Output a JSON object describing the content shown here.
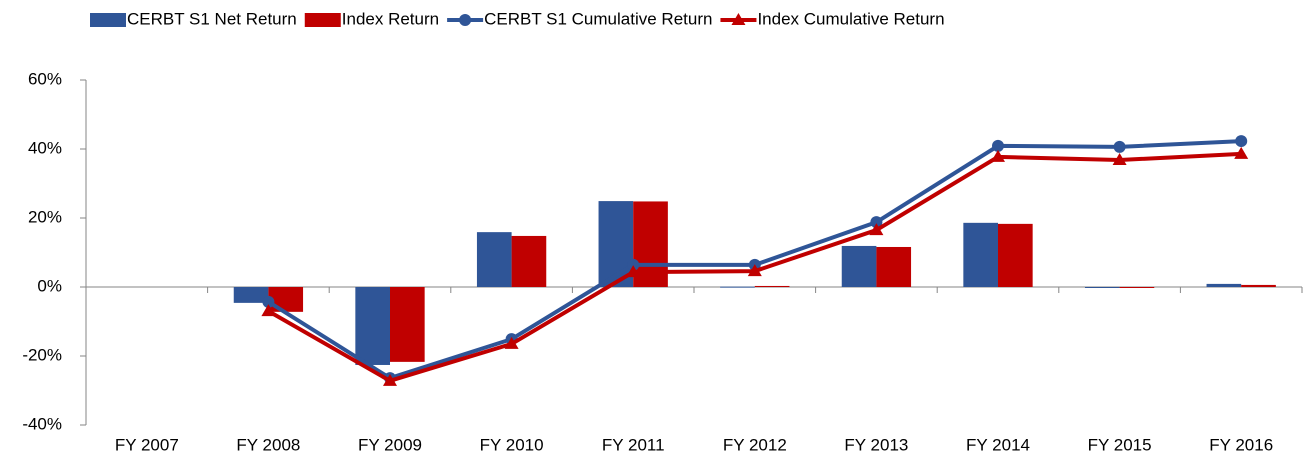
{
  "chart_data": {
    "type": "combo",
    "categories": [
      "FY 2007",
      "FY 2008",
      "FY 2009",
      "FY 2010",
      "FY 2011",
      "FY 2012",
      "FY 2013",
      "FY 2014",
      "FY 2015",
      "FY 2016"
    ],
    "series": [
      {
        "name": "CERBT S1 Net Return",
        "type": "bar",
        "color": "#2f5597",
        "values": [
          null,
          -4.6,
          -22.6,
          15.9,
          24.9,
          0.1,
          11.9,
          18.6,
          0,
          0.9
        ]
      },
      {
        "name": "Index Return",
        "type": "bar",
        "color": "#c00000",
        "values": [
          null,
          -7.2,
          -21.7,
          14.8,
          24.8,
          0.3,
          11.6,
          18.3,
          -0.2,
          0.6
        ]
      },
      {
        "name": "CERBT S1 Cumulative Return",
        "type": "line",
        "marker": "circle",
        "color": "#2f5597",
        "values": [
          null,
          -4.3,
          -26.4,
          -15.1,
          6.4,
          6.4,
          18.8,
          40.9,
          40.6,
          42.3
        ]
      },
      {
        "name": "Index Cumulative Return",
        "type": "line",
        "marker": "triangle",
        "color": "#c00000",
        "values": [
          null,
          -7.0,
          -27.2,
          -16.5,
          4.3,
          4.6,
          16.5,
          37.7,
          36.8,
          38.6
        ]
      }
    ],
    "ylim": [
      -40,
      60
    ],
    "yticks": [
      {
        "value": -40,
        "label": "-40%"
      },
      {
        "value": -20,
        "label": "-20%"
      },
      {
        "value": 0,
        "label": "0%"
      },
      {
        "value": 20,
        "label": "20%"
      },
      {
        "value": 40,
        "label": "40%"
      },
      {
        "value": 60,
        "label": "60%"
      }
    ],
    "grid": false,
    "legend": "top"
  }
}
